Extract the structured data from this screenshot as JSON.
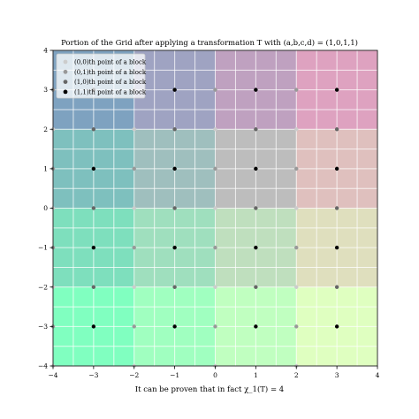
{
  "chart_data": {
    "type": "scatter",
    "title": "Portion of the Grid after applying a transformation T with (a,b,c,d) = (1,0,1,1)",
    "xlabel": "It can be proven that in fact χ_1(T) = 4",
    "ylabel": "",
    "xlim": [
      -4,
      4
    ],
    "ylim": [
      -4,
      4
    ],
    "x_ticks": [
      -4,
      -3,
      -2,
      -1,
      0,
      1,
      2,
      3,
      4
    ],
    "y_ticks": [
      -4,
      -3,
      -2,
      -1,
      0,
      1,
      2,
      3,
      4
    ],
    "x_tick_labels": [
      "−4",
      "−3",
      "−2",
      "−1",
      "0",
      "1",
      "2",
      "3",
      "4"
    ],
    "y_tick_labels": [
      "−4",
      "−3",
      "−2",
      "−1",
      "0",
      "1",
      "2",
      "3",
      "4"
    ],
    "grid": true,
    "legend_position": "top-left",
    "background_cells": {
      "x_edges": [
        -4,
        -2,
        0,
        2,
        4
      ],
      "y_edges": [
        -4,
        -2,
        0,
        2,
        4
      ],
      "rows_top_to_bottom": [
        [
          "#7ea2c0",
          "#9fa3c2",
          "#bfa1c0",
          "#dea2c0"
        ],
        [
          "#7ec0be",
          "#9fbfbe",
          "#bdbdbd",
          "#dfc0be"
        ],
        [
          "#7edfbd",
          "#9fdfbe",
          "#bfdfbe",
          "#dfdfbe"
        ],
        [
          "#80ffc0",
          "#a0ffc0",
          "#c0ffc0",
          "#dfffc0"
        ]
      ]
    },
    "series": [
      {
        "name": "(0,0)th point of a block",
        "color": "#cccccc",
        "points": [
          [
            -4,
            -4
          ],
          [
            -2,
            -4
          ],
          [
            0,
            -4
          ],
          [
            2,
            -4
          ],
          [
            -4,
            -2
          ],
          [
            -2,
            -2
          ],
          [
            0,
            -2
          ],
          [
            2,
            -2
          ],
          [
            -4,
            0
          ],
          [
            -2,
            0
          ],
          [
            0,
            0
          ],
          [
            2,
            0
          ],
          [
            -4,
            2
          ],
          [
            -2,
            2
          ],
          [
            0,
            2
          ],
          [
            2,
            2
          ]
        ]
      },
      {
        "name": "(0,1)th point of a block",
        "color": "#999999",
        "points": [
          [
            -4,
            -3
          ],
          [
            -2,
            -3
          ],
          [
            0,
            -3
          ],
          [
            2,
            -3
          ],
          [
            -4,
            -1
          ],
          [
            -2,
            -1
          ],
          [
            0,
            -1
          ],
          [
            2,
            -1
          ],
          [
            -4,
            1
          ],
          [
            -2,
            1
          ],
          [
            0,
            1
          ],
          [
            2,
            1
          ],
          [
            -4,
            3
          ],
          [
            -2,
            3
          ],
          [
            0,
            3
          ],
          [
            2,
            3
          ]
        ]
      },
      {
        "name": "(1,0)th point of a block",
        "color": "#666666",
        "points": [
          [
            -3,
            -2
          ],
          [
            -1,
            -2
          ],
          [
            1,
            -2
          ],
          [
            3,
            -2
          ],
          [
            -3,
            0
          ],
          [
            -1,
            0
          ],
          [
            1,
            0
          ],
          [
            3,
            0
          ],
          [
            -3,
            2
          ],
          [
            -1,
            2
          ],
          [
            1,
            2
          ],
          [
            3,
            2
          ]
        ]
      },
      {
        "name": "(1,1)th point of a block",
        "color": "#000000",
        "points": [
          [
            -3,
            -3
          ],
          [
            -1,
            -3
          ],
          [
            1,
            -3
          ],
          [
            3,
            -3
          ],
          [
            -3,
            -1
          ],
          [
            -1,
            -1
          ],
          [
            1,
            -1
          ],
          [
            3,
            -1
          ],
          [
            -3,
            1
          ],
          [
            -1,
            1
          ],
          [
            1,
            1
          ],
          [
            3,
            1
          ],
          [
            -3,
            3
          ],
          [
            -1,
            3
          ],
          [
            1,
            3
          ],
          [
            3,
            3
          ]
        ]
      }
    ]
  }
}
